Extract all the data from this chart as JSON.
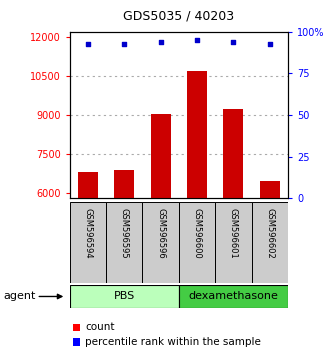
{
  "title": "GDS5035 / 40203",
  "samples": [
    "GSM596594",
    "GSM596595",
    "GSM596596",
    "GSM596600",
    "GSM596601",
    "GSM596602"
  ],
  "counts": [
    6800,
    6900,
    9050,
    10700,
    9250,
    6450
  ],
  "percentile_ranks": [
    93,
    93,
    94,
    95,
    94,
    93
  ],
  "ylim_left": [
    5800,
    12200
  ],
  "ylim_right": [
    0,
    100
  ],
  "yticks_left": [
    6000,
    7500,
    9000,
    10500,
    12000
  ],
  "ytick_labels_left": [
    "6000",
    "7500",
    "9000",
    "10500",
    "12000"
  ],
  "yticks_right": [
    0,
    25,
    50,
    75,
    100
  ],
  "ytick_labels_right": [
    "0",
    "25",
    "50",
    "75",
    "100%"
  ],
  "bar_color": "#cc0000",
  "dot_color": "#0000cc",
  "bar_width": 0.55,
  "agent_label": "agent",
  "legend_count_label": "count",
  "legend_pct_label": "percentile rank within the sample",
  "grid_color": "#aaaaaa",
  "label_area_color": "#cccccc",
  "pbs_color": "#bbffbb",
  "dex_color": "#44cc44"
}
